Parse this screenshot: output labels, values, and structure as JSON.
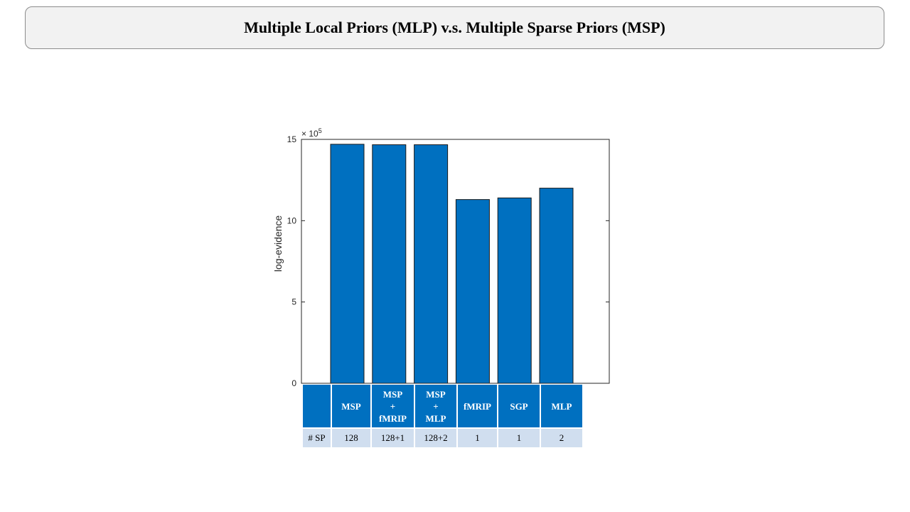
{
  "title": "Multiple Local Priors (MLP) v.s. Multiple Sparse Priors (MSP)",
  "chart_data": {
    "type": "bar",
    "categories": [
      "MSP",
      "MSP + fMRIP",
      "MSP + MLP",
      "fMRIP",
      "SGP",
      "MLP"
    ],
    "values": [
      1470000,
      1467000,
      1467000,
      1130000,
      1140000,
      1200000
    ],
    "ylabel": "log-evidence",
    "xlabel": "",
    "ylim": [
      0,
      1500000
    ],
    "yticks": [
      0,
      5,
      10,
      15
    ],
    "exponent_label": "× 10",
    "exponent_power": "5",
    "bar_color": "#0070c0",
    "grid": false
  },
  "table": {
    "header": [
      [
        ""
      ],
      [
        "MSP"
      ],
      [
        "MSP",
        "+",
        "fMRIP"
      ],
      [
        "MSP",
        "+",
        "MLP"
      ],
      [
        "fMRIP"
      ],
      [
        "SGP"
      ],
      [
        "MLP"
      ]
    ],
    "row": [
      "# SP",
      "128",
      "128+1",
      "128+2",
      "1",
      "1",
      "2"
    ]
  }
}
